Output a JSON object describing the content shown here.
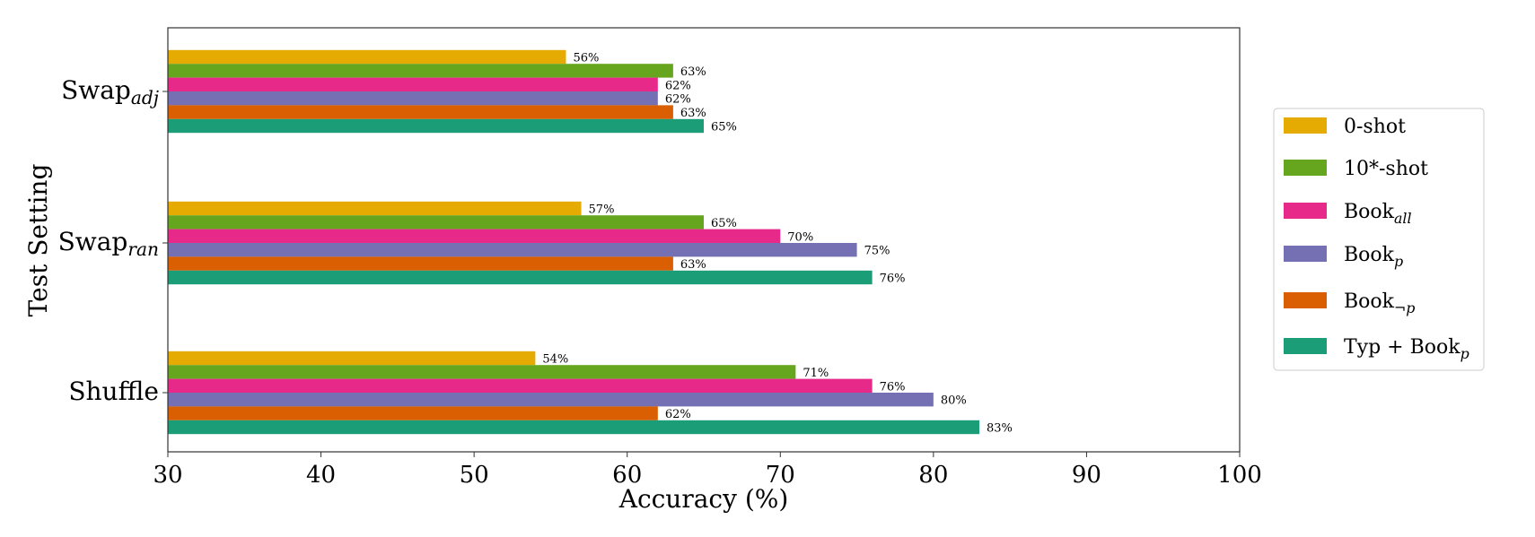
{
  "chart_data": {
    "type": "bar",
    "orientation": "horizontal",
    "xlabel": "Accuracy (%)",
    "ylabel": "Test Setting",
    "xlim": [
      30,
      100
    ],
    "xticks": [
      "30",
      "40",
      "50",
      "60",
      "70",
      "80",
      "90",
      "100"
    ],
    "categories": [
      {
        "base": "Swap",
        "sub": "adj"
      },
      {
        "base": "Swap",
        "sub": "ran"
      },
      {
        "base": "Shuffle",
        "sub": ""
      }
    ],
    "series": [
      {
        "base": "0-shot",
        "sub": "",
        "color": "#e6ab02",
        "values": [
          56,
          57,
          54
        ],
        "labels": [
          "56%",
          "57%",
          "54%"
        ]
      },
      {
        "base": "10*-shot",
        "sub": "",
        "color": "#66a61e",
        "values": [
          63,
          65,
          71
        ],
        "labels": [
          "63%",
          "65%",
          "71%"
        ]
      },
      {
        "base": "Book",
        "sub": "all",
        "color": "#e7298a",
        "values": [
          62,
          70,
          76
        ],
        "labels": [
          "62%",
          "70%",
          "76%"
        ]
      },
      {
        "base": "Book",
        "sub": "p",
        "color": "#7570b3",
        "values": [
          62,
          75,
          80
        ],
        "labels": [
          "62%",
          "75%",
          "80%"
        ]
      },
      {
        "base": "Book",
        "sub": "¬p",
        "color": "#d95f02",
        "values": [
          63,
          63,
          62
        ],
        "labels": [
          "63%",
          "63%",
          "62%"
        ]
      },
      {
        "base": "Typ + Book",
        "sub": "p",
        "color": "#1b9e77",
        "values": [
          65,
          76,
          83
        ],
        "labels": [
          "65%",
          "76%",
          "83%"
        ]
      }
    ],
    "grid": false,
    "legend_position": "right"
  }
}
